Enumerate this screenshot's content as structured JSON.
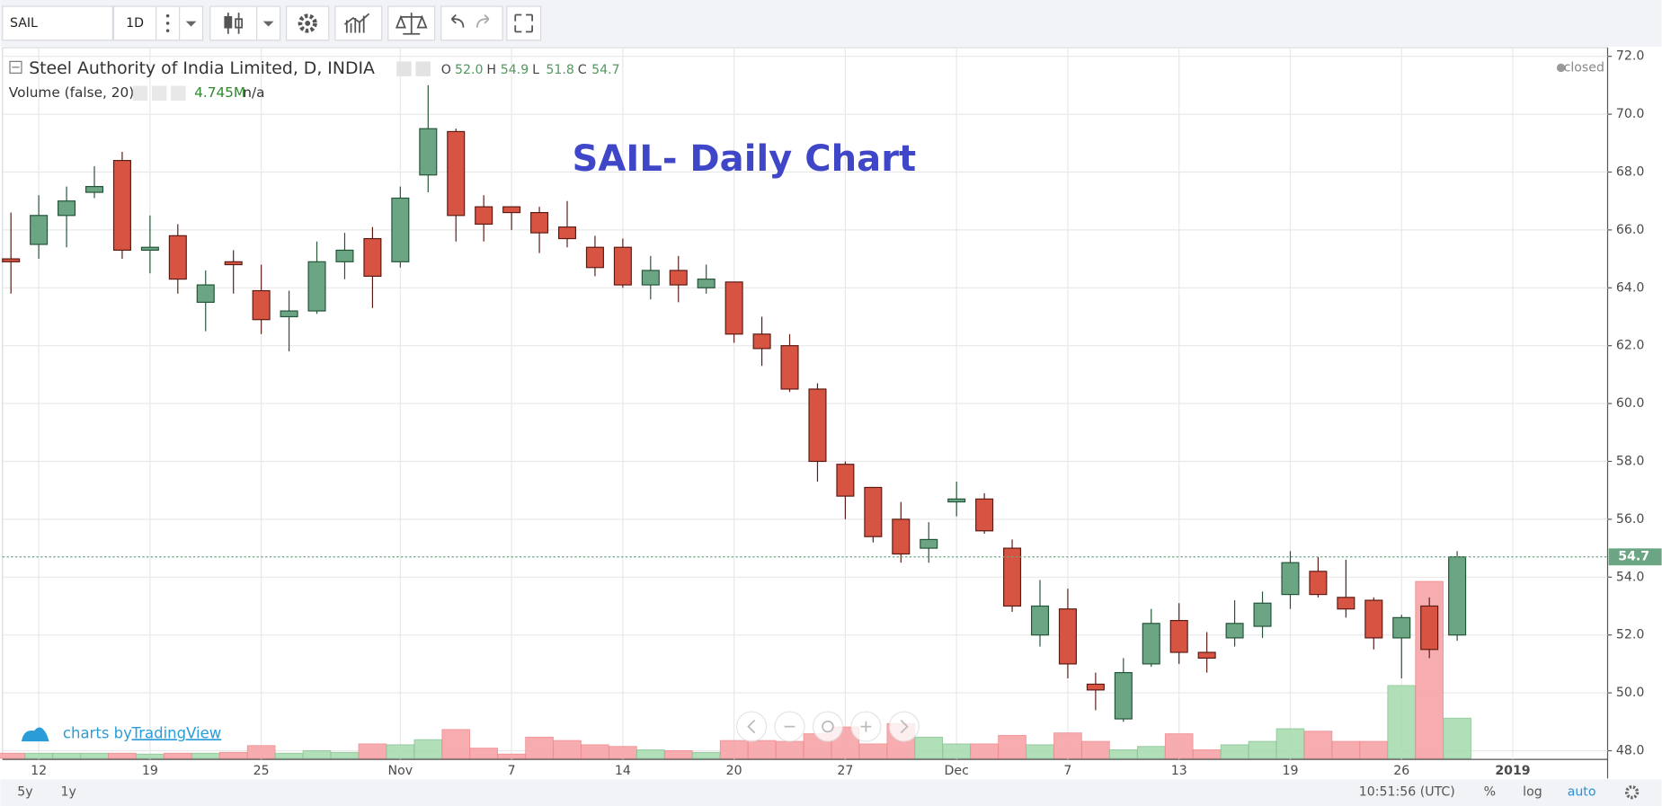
{
  "toolbar": {
    "symbol": "SAIL",
    "interval": "1D"
  },
  "legend": {
    "name": "Steel Authority of India Limited, D, INDIA",
    "ohlc": [
      {
        "key": "O",
        "value": "52.0"
      },
      {
        "key": "H",
        "value": "54.9"
      },
      {
        "key": "L",
        "value": "51.8"
      },
      {
        "key": "C",
        "value": "54.7"
      }
    ],
    "volume_name": "Volume (false, 20)",
    "volume_value": "4.745M",
    "volume_ma": "n/a"
  },
  "status": "closed",
  "branding": {
    "prefix": "charts by",
    "brand": "TradingView"
  },
  "footer": {
    "ranges": [
      "5y",
      "1y"
    ],
    "time": "10:51:56 (UTC)",
    "options": [
      "%",
      "log",
      "auto"
    ]
  },
  "chart_data": {
    "type": "candlestick",
    "title": "SAIL- Daily Chart",
    "categories": [
      null,
      "12",
      null,
      null,
      null,
      "19",
      null,
      null,
      null,
      "25",
      null,
      null,
      null,
      null,
      "Nov",
      null,
      null,
      null,
      "7",
      null,
      null,
      null,
      "14",
      null,
      null,
      null,
      "20",
      null,
      null,
      null,
      "27",
      null,
      null,
      null,
      "Dec",
      null,
      null,
      null,
      "7",
      null,
      null,
      null,
      "13",
      null,
      null,
      null,
      "19",
      null,
      null,
      null,
      "26",
      null,
      null,
      null,
      "2019"
    ],
    "open": [
      65.0,
      65.5,
      66.5,
      67.3,
      68.4,
      65.3,
      65.8,
      63.5,
      64.9,
      63.9,
      63.0,
      63.2,
      64.9,
      65.7,
      64.9,
      67.9,
      69.4,
      66.8,
      66.8,
      66.6,
      66.1,
      65.4,
      65.4,
      64.1,
      64.6,
      64.0,
      64.2,
      62.4,
      62.0,
      60.5,
      57.9,
      57.1,
      56.0,
      55.0,
      56.6,
      56.7,
      55.0,
      52.0,
      52.9,
      50.3,
      49.1,
      51.0,
      52.5,
      51.4,
      51.9,
      52.3,
      53.4,
      54.2,
      53.3,
      53.2,
      51.9,
      53.0,
      52.0,
      null,
      null
    ],
    "high": [
      66.6,
      67.2,
      67.5,
      68.2,
      68.7,
      66.5,
      66.2,
      64.6,
      65.3,
      64.8,
      63.9,
      65.6,
      65.9,
      66.1,
      67.5,
      71.0,
      69.5,
      67.2,
      66.8,
      66.8,
      67.0,
      65.8,
      65.7,
      65.1,
      65.1,
      64.8,
      64.2,
      63.0,
      62.4,
      60.7,
      58.0,
      57.1,
      56.6,
      55.9,
      57.3,
      56.9,
      55.3,
      53.9,
      53.6,
      50.7,
      51.2,
      52.9,
      53.1,
      52.1,
      53.2,
      53.5,
      54.9,
      54.7,
      54.6,
      53.3,
      52.7,
      53.3,
      54.9,
      null,
      null
    ],
    "low": [
      63.8,
      65.0,
      65.4,
      67.1,
      65.0,
      64.5,
      63.8,
      62.5,
      63.8,
      62.4,
      61.8,
      63.1,
      64.3,
      63.3,
      64.7,
      67.3,
      65.6,
      65.6,
      66.0,
      65.2,
      65.4,
      64.4,
      64.0,
      63.6,
      63.5,
      63.8,
      62.1,
      61.3,
      60.4,
      57.3,
      56.0,
      55.2,
      54.5,
      54.5,
      56.1,
      55.5,
      52.8,
      51.6,
      50.5,
      49.4,
      49.0,
      50.9,
      51.0,
      50.7,
      51.6,
      51.9,
      52.9,
      53.3,
      52.6,
      51.5,
      50.5,
      51.2,
      51.8,
      null,
      null
    ],
    "close": [
      64.9,
      66.5,
      67.0,
      67.5,
      65.3,
      65.4,
      64.3,
      64.1,
      64.8,
      62.9,
      63.2,
      64.9,
      65.3,
      64.4,
      67.1,
      69.5,
      66.5,
      66.2,
      66.6,
      65.9,
      65.7,
      64.7,
      64.1,
      64.6,
      64.1,
      64.3,
      62.4,
      61.9,
      60.5,
      58.0,
      56.8,
      55.4,
      54.8,
      55.3,
      56.7,
      55.6,
      53.0,
      53.0,
      51.0,
      50.1,
      50.7,
      52.4,
      51.4,
      51.2,
      52.4,
      53.1,
      54.5,
      53.4,
      52.9,
      51.9,
      52.6,
      51.5,
      54.7,
      null,
      null
    ],
    "volume": [
      0.6,
      0.6,
      0.6,
      0.6,
      0.6,
      0.5,
      0.6,
      0.6,
      0.7,
      1.5,
      0.6,
      0.9,
      0.7,
      1.7,
      1.6,
      2.2,
      3.4,
      1.2,
      0.5,
      2.5,
      2.1,
      1.6,
      1.4,
      1.0,
      0.9,
      0.7,
      2.1,
      2.1,
      2.0,
      2.9,
      3.7,
      1.7,
      4.1,
      2.5,
      1.7,
      1.7,
      2.7,
      1.6,
      3.0,
      2.0,
      1.0,
      1.4,
      2.9,
      1.0,
      1.6,
      2.0,
      3.5,
      3.2,
      2.0,
      2.0,
      8.6,
      20.9,
      4.745,
      null,
      null
    ],
    "up_color": "#6ba583",
    "down_color": "#d75442",
    "up_volume_color": "#a9dcb0",
    "down_volume_color": "#f7a5a7",
    "ylim": [
      47.7,
      72.3
    ],
    "yticks": [
      {
        "value": 48,
        "label": "48.0"
      },
      {
        "value": 50,
        "label": "50.0"
      },
      {
        "value": 52,
        "label": "52.0"
      },
      {
        "value": 54,
        "label": "54.0"
      },
      {
        "value": 56,
        "label": "56.0"
      },
      {
        "value": 58,
        "label": "58.0"
      },
      {
        "value": 60,
        "label": "60.0"
      },
      {
        "value": 62,
        "label": "62.0"
      },
      {
        "value": 64,
        "label": "64.0"
      },
      {
        "value": 66,
        "label": "66.0"
      },
      {
        "value": 68,
        "label": "68.0"
      },
      {
        "value": 70,
        "label": "70.0"
      },
      {
        "value": 72,
        "label": "72.0"
      }
    ],
    "grid": true,
    "last_price": {
      "value": 54.7,
      "label": "54.7"
    }
  }
}
